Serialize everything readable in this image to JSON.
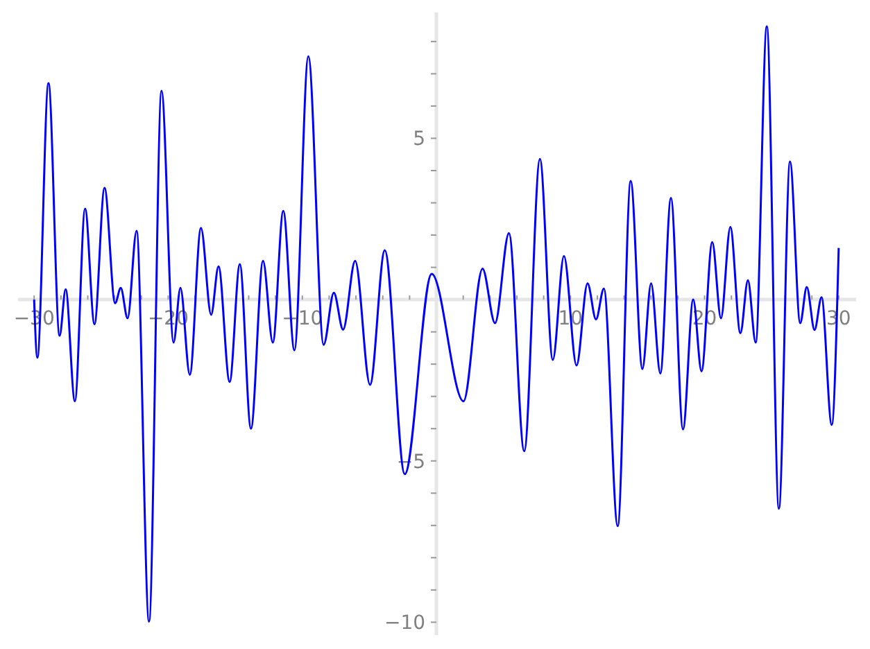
{
  "chart_data": {
    "type": "line",
    "color": "#0000ff",
    "x": [
      -30,
      -29.76,
      -28.93,
      -28.1,
      -27.65,
      -26.96,
      -26.2,
      -25.5,
      -24.75,
      -23.96,
      -23.54,
      -23.03,
      -22.36,
      -21.43,
      -20.5,
      -19.6,
      -19.09,
      -18.39,
      -17.56,
      -16.8,
      -16.25,
      -15.42,
      -14.66,
      -13.83,
      -12.93,
      -12.2,
      -11.42,
      -10.59,
      -9.55,
      -8.41,
      -7.65,
      -6.96,
      -6.06,
      -4.95,
      -3.85,
      -2.36,
      -0.35,
      2.02,
      3.44,
      4.37,
      5.41,
      6.55,
      7.72,
      8.68,
      9.51,
      10.45,
      11.27,
      11.9,
      12.49,
      13.52,
      14.49,
      15.36,
      16.01,
      16.7,
      17.49,
      18.39,
      19.15,
      19.77,
      20.57,
      21.22,
      21.92,
      22.67,
      23.23,
      23.81,
      24.64,
      25.54,
      26.37,
      27.13,
      27.62,
      28.2,
      28.72,
      29.48,
      30
    ],
    "values": [
      0,
      -1.8,
      6.71,
      -1.12,
      0.32,
      -3.15,
      2.82,
      -0.76,
      3.46,
      -0.11,
      0.36,
      -0.58,
      2.13,
      -9.98,
      6.47,
      -1.33,
      0.36,
      -2.33,
      2.22,
      -0.47,
      1.03,
      -2.55,
      1.1,
      -4.0,
      1.2,
      -1.33,
      2.75,
      -1.57,
      7.54,
      -1.4,
      0.21,
      -0.93,
      1.2,
      -2.64,
      1.53,
      -5.41,
      0.8,
      -3.15,
      0.96,
      -0.73,
      2.06,
      -4.7,
      4.36,
      -1.87,
      1.35,
      -2.04,
      0.5,
      -0.61,
      0.34,
      -7.02,
      3.68,
      -2.15,
      0.5,
      -2.29,
      3.15,
      -4.02,
      0.0,
      -2.22,
      1.78,
      -0.58,
      2.25,
      -1.04,
      0.6,
      -1.33,
      8.47,
      -6.48,
      4.28,
      -0.73,
      0.39,
      -0.94,
      0.07,
      -3.88,
      1.6
    ],
    "xlim": [
      -31.2,
      31.3
    ],
    "ylim": [
      -10.4,
      8.9
    ],
    "xticks": [
      {
        "value": -30,
        "label": "−30"
      },
      {
        "value": -28,
        "label": null
      },
      {
        "value": -26,
        "label": null
      },
      {
        "value": -24,
        "label": null
      },
      {
        "value": -22,
        "label": null
      },
      {
        "value": -20,
        "label": "−20"
      },
      {
        "value": -18,
        "label": null
      },
      {
        "value": -16,
        "label": null
      },
      {
        "value": -14,
        "label": null
      },
      {
        "value": -12,
        "label": null
      },
      {
        "value": -10,
        "label": "−10"
      },
      {
        "value": -8,
        "label": null
      },
      {
        "value": -6,
        "label": null
      },
      {
        "value": -4,
        "label": null
      },
      {
        "value": -2,
        "label": null
      },
      {
        "value": 2,
        "label": null
      },
      {
        "value": 4,
        "label": null
      },
      {
        "value": 6,
        "label": null
      },
      {
        "value": 8,
        "label": null
      },
      10,
      {
        "value": 12,
        "label": null
      },
      {
        "value": 14,
        "label": null
      },
      {
        "value": 16,
        "label": null
      },
      {
        "value": 18,
        "label": null
      },
      20,
      {
        "value": 22,
        "label": null
      },
      {
        "value": 24,
        "label": null
      },
      {
        "value": 26,
        "label": null
      },
      {
        "value": 28,
        "label": null
      },
      30
    ],
    "yticks": [
      {
        "value": -10,
        "label": "−10"
      },
      {
        "value": -9,
        "label": null
      },
      {
        "value": -8,
        "label": null
      },
      {
        "value": -7,
        "label": null
      },
      {
        "value": -6,
        "label": null
      },
      {
        "value": -5,
        "label": "−5"
      },
      {
        "value": -4,
        "label": null
      },
      {
        "value": -3,
        "label": null
      },
      {
        "value": -2,
        "label": null
      },
      {
        "value": -1,
        "label": null
      },
      {
        "value": 1,
        "label": null
      },
      {
        "value": 2,
        "label": null
      },
      {
        "value": 3,
        "label": null
      },
      {
        "value": 4,
        "label": null
      },
      5,
      {
        "value": 6,
        "label": null
      },
      {
        "value": 7,
        "label": null
      },
      {
        "value": 8,
        "label": null
      }
    ]
  }
}
